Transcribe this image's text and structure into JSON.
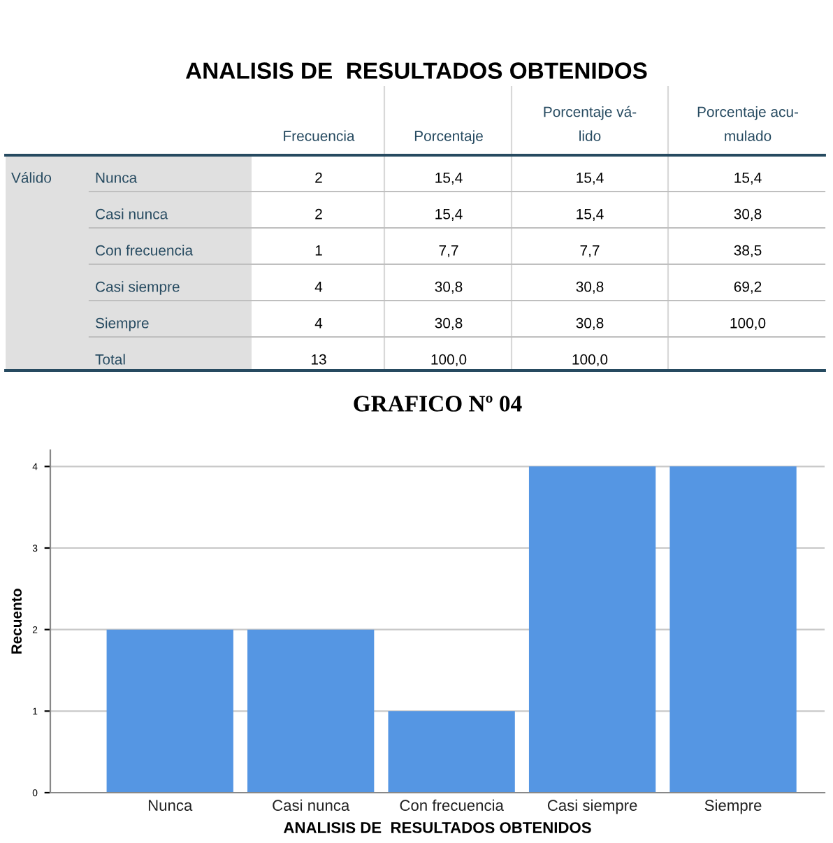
{
  "chart_data": [
    {
      "type": "other",
      "title": "ANALISIS DE  RESULTADOS OBTENIDOS",
      "annotations": [
        "Frecuencia",
        "Porcentaje",
        "Porcentaje vá-\nlido",
        "Porcentaje acu-\nmulado",
        "Válido",
        "Nunca",
        "2",
        "15,4",
        "15,4",
        "15,4",
        "Casi nunca",
        "2",
        "15,4",
        "15,4",
        "30,8",
        "Con frecuencia",
        "1",
        "7,7",
        "7,7",
        "38,5",
        "Casi siempre",
        "4",
        "30,8",
        "30,8",
        "69,2",
        "Siempre",
        "4",
        "30,8",
        "30,8",
        "100,0",
        "Total",
        "13",
        "100,0",
        "100,0"
      ]
    },
    {
      "type": "bar",
      "title": "GRAFICO Nº 04",
      "xlabel": "ANALISIS DE  RESULTADOS OBTENIDOS",
      "ylabel": "Recuento",
      "categories": [
        "Nunca",
        "Casi nunca",
        "Con frecuencia",
        "Casi siempre",
        "Siempre"
      ],
      "values": [
        2,
        2,
        1,
        4,
        4
      ],
      "color": "#5596e3",
      "ylim": [
        0,
        4.2
      ],
      "yticks": [
        0,
        1,
        2,
        3,
        4
      ],
      "grid": "y",
      "legend": false
    }
  ]
}
